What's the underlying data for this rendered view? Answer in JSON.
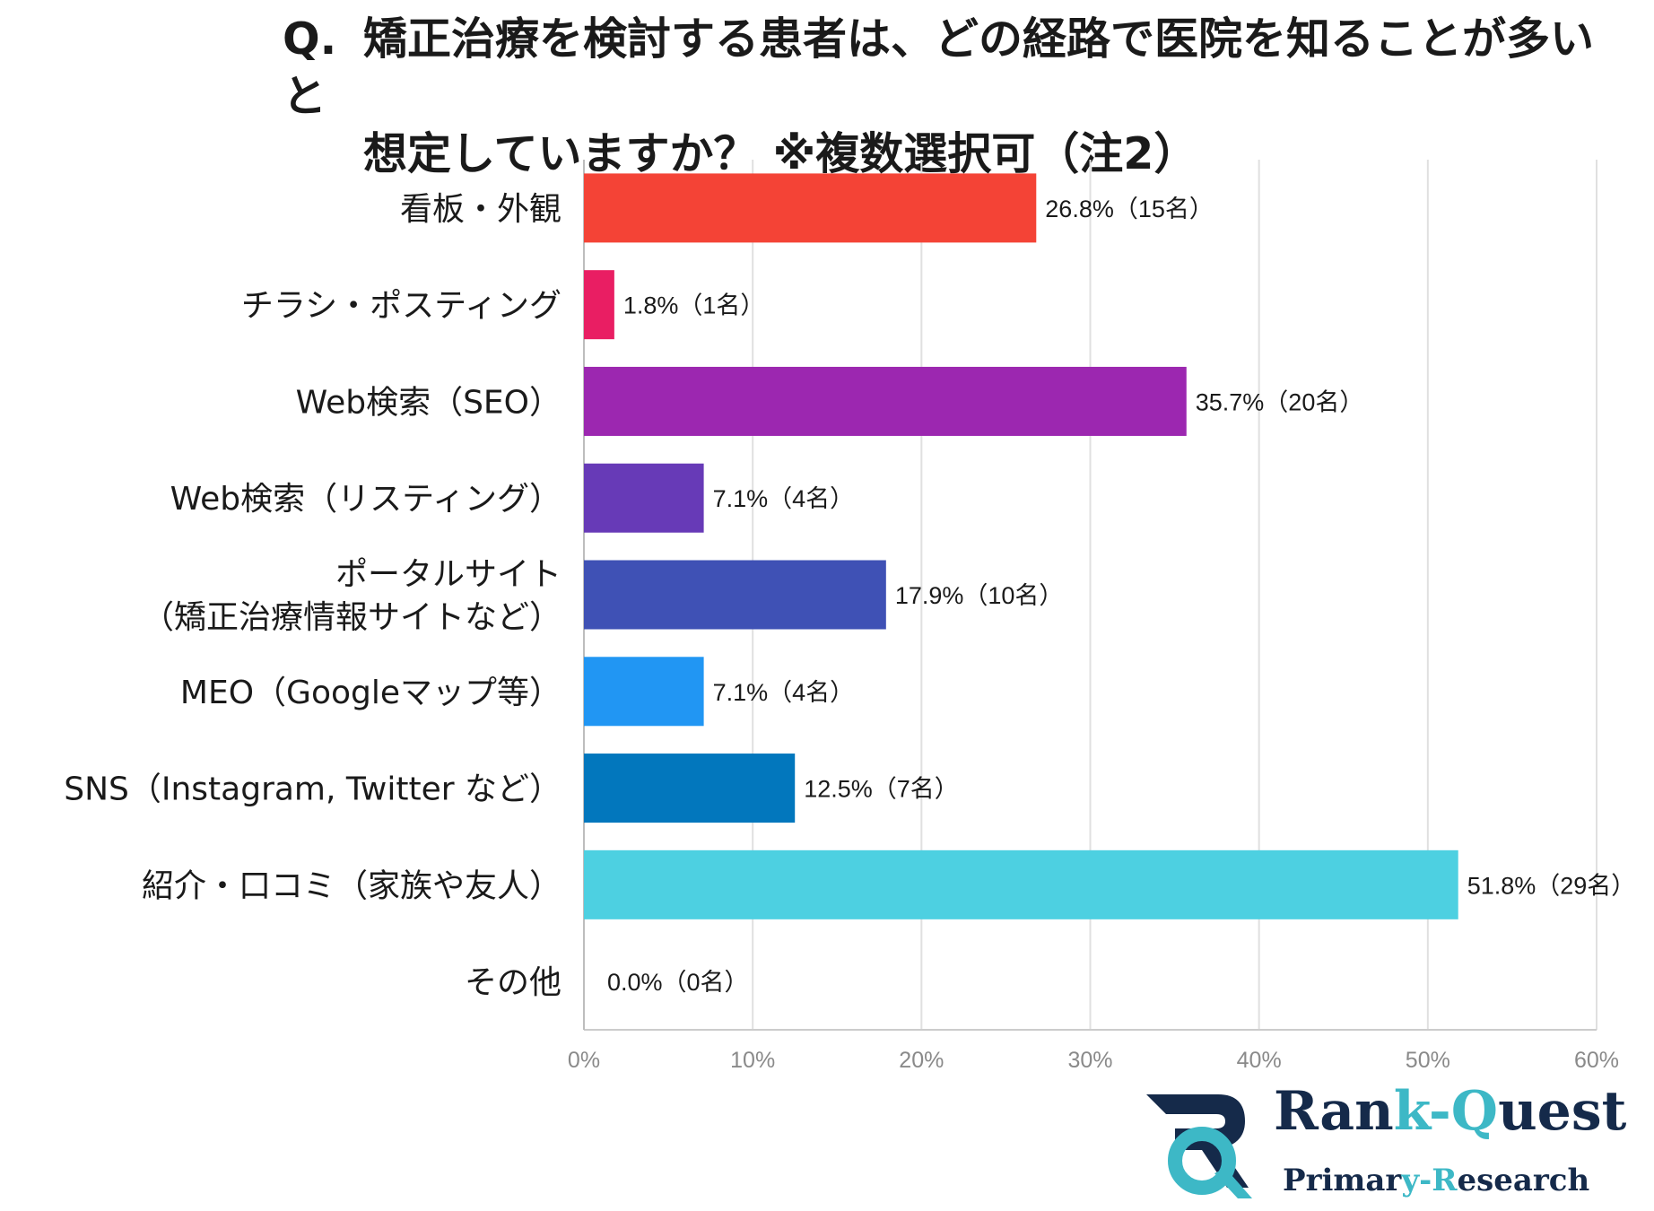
{
  "title": {
    "prefix": "Q.",
    "line1": "矯正治療を検討する患者は、どの経路で医院を知ることが多いと",
    "line2": "想定していますか？ ※複数選択可（注2）"
  },
  "chart_data": {
    "type": "bar",
    "orientation": "horizontal",
    "categories": [
      [
        "看板・外観"
      ],
      [
        "チラシ・ポスティング"
      ],
      [
        "Web検索（SEO）"
      ],
      [
        "Web検索（リスティング）"
      ],
      [
        "ポータルサイト",
        "（矯正治療情報サイトなど）"
      ],
      [
        "MEO（Googleマップ等）"
      ],
      [
        "SNS（Instagram, Twitter など）"
      ],
      [
        "紹介・口コミ（家族や友人）"
      ],
      [
        "その他"
      ]
    ],
    "values": [
      26.8,
      1.8,
      35.7,
      7.1,
      17.9,
      7.1,
      12.5,
      51.8,
      0.0
    ],
    "data_labels": [
      "26.8%（15名）",
      "1.8%（1名）",
      "35.7%（20名）",
      "7.1%（4名）",
      "17.9%（10名）",
      "7.1%（4名）",
      "12.5%（7名）",
      "51.8%（29名）",
      "0.0%（0名）"
    ],
    "colors": [
      "#f44336",
      "#e91e63",
      "#9c27b0",
      "#673ab7",
      "#3f51b5",
      "#2196f3",
      "#0277bd",
      "#4dd0e1",
      "#9e9e9e"
    ],
    "xlim": [
      0,
      60
    ],
    "xticks": [
      0,
      10,
      20,
      30,
      40,
      50,
      60
    ],
    "xtick_labels": [
      "0%",
      "10%",
      "20%",
      "30%",
      "40%",
      "50%",
      "60%"
    ],
    "grid": true,
    "xlabel": "",
    "ylabel": ""
  },
  "logo": {
    "name_part1": "Ran",
    "name_part2": "k-Q",
    "name_part3": "uest",
    "sub_part1": "Primar",
    "sub_part2": "y-R",
    "sub_part3": "esearch",
    "colors": {
      "navy": "#152a4a",
      "teal": "#3db8c6"
    }
  }
}
